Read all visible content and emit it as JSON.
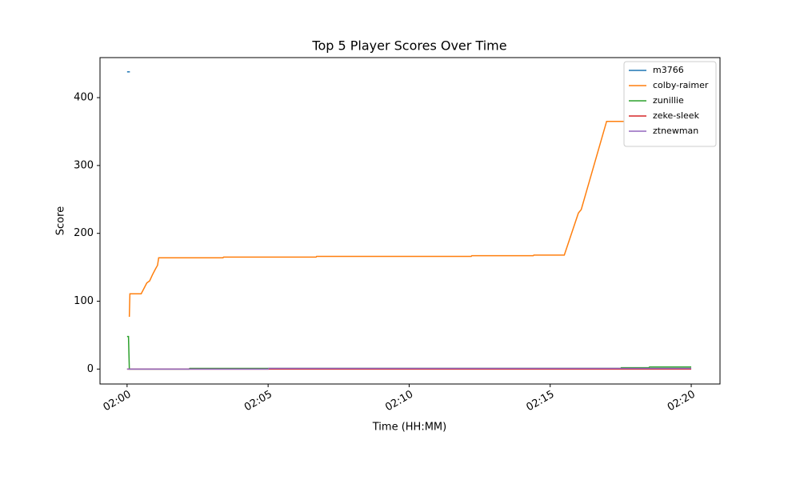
{
  "chart_data": {
    "type": "line",
    "title": "Top 5 Player Scores Over Time",
    "x_label": "Time (HH:MM)",
    "y_label": "Score",
    "xlim": [
      -0.96,
      21.02
    ],
    "ylim": [
      -22,
      459
    ],
    "xticks": [
      {
        "value": 0,
        "label": "02:00"
      },
      {
        "value": 5,
        "label": "02:05"
      },
      {
        "value": 10,
        "label": "02:10"
      },
      {
        "value": 15,
        "label": "02:15"
      },
      {
        "value": 20,
        "label": "02:20"
      }
    ],
    "yticks": [
      0,
      100,
      200,
      300,
      400
    ],
    "legend": "upper right",
    "series": [
      {
        "name": "m3766",
        "color": "#1f77b4",
        "x": [
          0,
          0.1
        ],
        "values": [
          438,
          438
        ]
      },
      {
        "name": "colby-raimer",
        "color": "#ff7f0e",
        "x": [
          0.08,
          0.1,
          0.5,
          0.7,
          0.8,
          0.9,
          1.0,
          1.08,
          1.12,
          3.4,
          3.42,
          6.7,
          6.72,
          12.2,
          12.22,
          14.4,
          14.42,
          15.5,
          16.0,
          16.1,
          17.0,
          20.0
        ],
        "values": [
          77,
          111,
          111,
          127,
          130,
          139,
          147,
          153,
          164,
          164,
          165,
          165,
          166,
          166,
          167,
          167,
          168,
          168,
          230,
          235,
          365,
          365
        ]
      },
      {
        "name": "zunillie",
        "color": "#2ca02c",
        "x": [
          0,
          0.05,
          0.08,
          2.2,
          2.22,
          17.5,
          17.52,
          18.5,
          18.52,
          20
        ],
        "values": [
          48,
          48,
          0,
          0,
          1,
          1,
          2,
          2,
          3,
          3
        ]
      },
      {
        "name": "zeke-sleek",
        "color": "#d62728",
        "x": [
          0,
          20
        ],
        "values": [
          0,
          0
        ]
      },
      {
        "name": "ztnewman",
        "color": "#9467bd",
        "x": [
          0,
          5,
          5.02,
          20
        ],
        "values": [
          0,
          0,
          1,
          1
        ]
      }
    ]
  }
}
